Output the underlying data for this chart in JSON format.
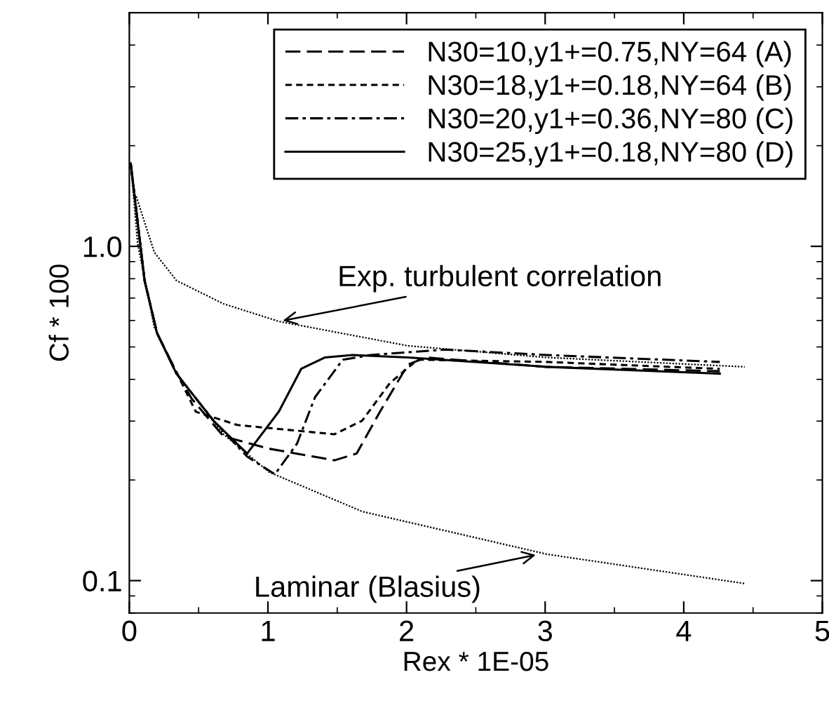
{
  "chart_data": {
    "type": "line",
    "xlabel": "Rex * 1E-05",
    "ylabel": "Cf * 100",
    "xlim": [
      0,
      5
    ],
    "xticks": [
      0,
      1,
      2,
      3,
      4,
      5
    ],
    "ylim": [
      0.08,
      5
    ],
    "yticks": [
      {
        "value": 0.1,
        "label": "0.1"
      },
      {
        "value": 1,
        "label": "1.0"
      }
    ],
    "log": "y",
    "legend": "top right",
    "grid": false,
    "series": [
      {
        "name": "N30=10,y1+=0.75,NY=64 (A)",
        "color": "#000000",
        "line_style": "long dashed",
        "x": [
          0.01,
          0.11,
          0.2,
          0.34,
          0.45,
          0.68,
          1.01,
          1.48,
          1.64,
          1.81,
          2.01,
          2.14,
          3.01,
          4.26
        ],
        "values": [
          1.77,
          0.79,
          0.55,
          0.42,
          0.35,
          0.27,
          0.248,
          0.229,
          0.24,
          0.321,
          0.443,
          0.465,
          0.436,
          0.423
        ]
      },
      {
        "name": "N30=18,y1+=0.18,NY=64 (B)",
        "color": "#000000",
        "line_style": "dashed",
        "x": [
          0.01,
          0.11,
          0.2,
          0.34,
          0.48,
          0.78,
          1.48,
          1.68,
          1.88,
          2.08,
          3.01,
          4.26
        ],
        "values": [
          1.77,
          0.79,
          0.55,
          0.42,
          0.32,
          0.292,
          0.274,
          0.301,
          0.39,
          0.458,
          0.451,
          0.43
        ]
      },
      {
        "name": "N30=20,y1+=0.36,NY=80 (C)",
        "color": "#000000",
        "line_style": "dashdot",
        "x": [
          0.01,
          0.11,
          0.2,
          0.34,
          0.61,
          0.85,
          1.05,
          1.21,
          1.34,
          1.54,
          1.74,
          2.28,
          3.01,
          4.26
        ],
        "values": [
          1.77,
          0.79,
          0.55,
          0.416,
          0.3,
          0.235,
          0.208,
          0.257,
          0.354,
          0.458,
          0.473,
          0.491,
          0.473,
          0.451
        ]
      },
      {
        "name": "N30=25,y1+=0.18,NY=80 (D)",
        "color": "#000000",
        "line_style": "solid",
        "x": [
          0.01,
          0.11,
          0.2,
          0.34,
          0.61,
          0.85,
          1.08,
          1.24,
          1.41,
          1.61,
          2.01,
          3.01,
          4.26
        ],
        "values": [
          1.77,
          0.79,
          0.55,
          0.416,
          0.3,
          0.24,
          0.321,
          0.43,
          0.465,
          0.473,
          0.465,
          0.436,
          0.416
        ]
      },
      {
        "color": "#000000",
        "line_style": "dotted",
        "x": [
          0.05,
          0.18,
          0.34,
          0.68,
          1.08,
          2.01,
          3.01,
          4.44
        ],
        "values": [
          1.41,
          0.96,
          0.79,
          0.673,
          0.596,
          0.504,
          0.465,
          0.436
        ]
      },
      {
        "color": "#000000",
        "line_style": "dotted",
        "x": [
          0.01,
          0.06,
          0.18,
          0.34,
          0.68,
          1.01,
          1.68,
          3.01,
          4.44
        ],
        "values": [
          1.77,
          1.02,
          0.573,
          0.416,
          0.274,
          0.211,
          0.161,
          0.12,
          0.098
        ]
      }
    ],
    "annotations": [
      {
        "text": "Exp. turbulent correlation",
        "x": 1.08,
        "y": 0.596
      },
      {
        "text": "Laminar (Blasius)",
        "x": 2.96,
        "y": 0.12
      }
    ]
  }
}
